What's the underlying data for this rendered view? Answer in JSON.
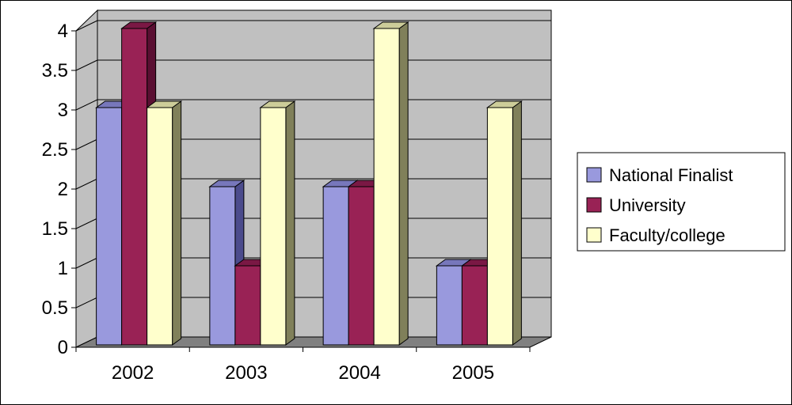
{
  "chart_data": {
    "type": "bar",
    "categories": [
      "2002",
      "2003",
      "2004",
      "2005"
    ],
    "series": [
      {
        "name": "National Finalist",
        "values": [
          3,
          2,
          2,
          1
        ],
        "color": "#9999DD",
        "side": "#4B4B8C",
        "top": "#7777BB"
      },
      {
        "name": "University",
        "values": [
          4,
          1,
          2,
          1
        ],
        "color": "#992255",
        "side": "#5A0F32",
        "top": "#7A1844"
      },
      {
        "name": "Faculty/college",
        "values": [
          3,
          3,
          4,
          3
        ],
        "color": "#FFFFCC",
        "side": "#80805A",
        "top": "#CCCC99"
      }
    ],
    "ylim": [
      0,
      4
    ],
    "yticks": [
      "0",
      "0.5",
      "1",
      "1.5",
      "2",
      "2.5",
      "3",
      "3.5",
      "4"
    ],
    "grid": true,
    "legend": "right",
    "wall_color": "#C0C0C0",
    "floor_color": "#808080"
  }
}
